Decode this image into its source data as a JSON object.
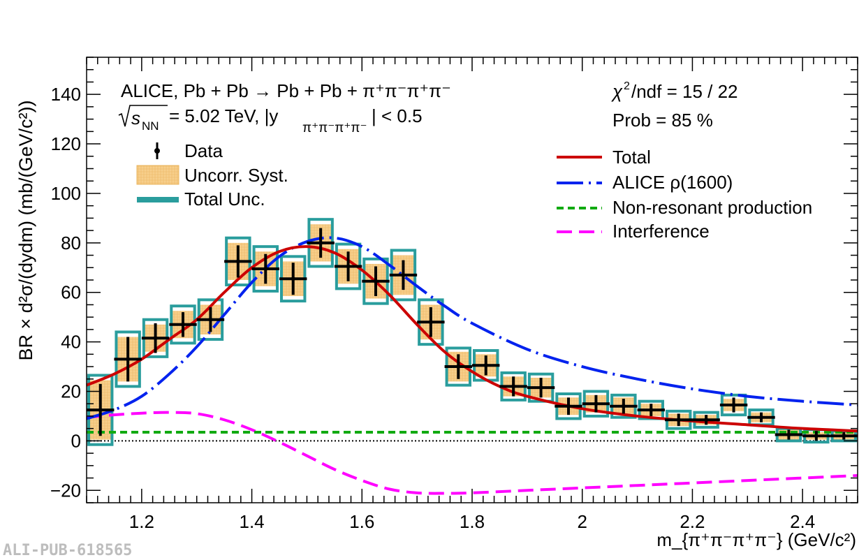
{
  "chart_data": {
    "type": "scatter",
    "watermark": "ALI-PUB-618565",
    "ylabel": "BR × d²σ/(dydm) (mb/(GeV/c²))",
    "xlabel": "m_{π⁺π⁻π⁺π⁻} (GeV/c²)",
    "xlim": [
      1.1,
      2.5
    ],
    "ylim": [
      -25,
      155
    ],
    "x_ticks": [
      1.2,
      1.4,
      1.6,
      1.8,
      2.0,
      2.2,
      2.4
    ],
    "x_tick_labels": [
      "1.2",
      "1.4",
      "1.6",
      "1.8",
      "2",
      "2.2",
      "2.4"
    ],
    "y_ticks": [
      -20,
      0,
      20,
      40,
      60,
      80,
      100,
      120,
      140
    ],
    "y_tick_labels": [
      "−20",
      "0",
      "20",
      "40",
      "60",
      "80",
      "100",
      "120",
      "140"
    ],
    "annotations": {
      "line1": "ALICE, Pb + Pb → Pb + Pb + π⁺π⁻π⁺π⁻",
      "sqrt_s_label": "s",
      "sqrt_s_sub": "NN",
      "energy_text": "= 5.02 TeV, |y",
      "y_sub": "π⁺π⁻π⁺π⁻",
      "y_cut": "| < 0.5",
      "chi2_sym": "χ",
      "chi2_sup": "2",
      "chi2": "/ndf = 15 / 22",
      "prob": "Prob = 85 %"
    },
    "legend_left": {
      "data": "Data",
      "uncorr": "Uncorr. Syst.",
      "total_unc": "Total Unc."
    },
    "legend_right": {
      "total": "Total",
      "rho": "ALICE ρ(1600)",
      "nonres": "Non-resonant production",
      "interference": "Interference"
    },
    "colors": {
      "data": "#000000",
      "syst_fill": "#f7cf8c",
      "total_unc": "#2a9d9d",
      "total": "#cc0000",
      "rho": "#0022ee",
      "nonres": "#11aa11",
      "interference": "#ff00ff"
    },
    "data_points": [
      {
        "x": 1.125,
        "y": 12.5,
        "stat": 10.5,
        "syst": 12,
        "total": 14
      },
      {
        "x": 1.175,
        "y": 33,
        "stat": 9,
        "syst": 9,
        "total": 11
      },
      {
        "x": 1.225,
        "y": 41.5,
        "stat": 6,
        "syst": 5.5,
        "total": 7.5
      },
      {
        "x": 1.275,
        "y": 47,
        "stat": 5,
        "syst": 5.5,
        "total": 7.5
      },
      {
        "x": 1.325,
        "y": 49,
        "stat": 5,
        "syst": 6,
        "total": 8
      },
      {
        "x": 1.375,
        "y": 72.5,
        "stat": 6.5,
        "syst": 7.5,
        "total": 9.5
      },
      {
        "x": 1.425,
        "y": 69.5,
        "stat": 6,
        "syst": 7,
        "total": 9
      },
      {
        "x": 1.475,
        "y": 65.5,
        "stat": 6.5,
        "syst": 7,
        "total": 9
      },
      {
        "x": 1.525,
        "y": 80,
        "stat": 6,
        "syst": 7.5,
        "total": 9.5
      },
      {
        "x": 1.575,
        "y": 70.5,
        "stat": 6,
        "syst": 7,
        "total": 9
      },
      {
        "x": 1.625,
        "y": 64.5,
        "stat": 6,
        "syst": 7,
        "total": 9
      },
      {
        "x": 1.675,
        "y": 67,
        "stat": 6,
        "syst": 8,
        "total": 10
      },
      {
        "x": 1.725,
        "y": 48,
        "stat": 6,
        "syst": 7,
        "total": 9
      },
      {
        "x": 1.775,
        "y": 30,
        "stat": 5,
        "syst": 6,
        "total": 7.5
      },
      {
        "x": 1.825,
        "y": 30.5,
        "stat": 4,
        "syst": 4.5,
        "total": 6
      },
      {
        "x": 1.875,
        "y": 22,
        "stat": 4,
        "syst": 4,
        "total": 5.5
      },
      {
        "x": 1.925,
        "y": 21.5,
        "stat": 4,
        "syst": 4,
        "total": 5.5
      },
      {
        "x": 1.975,
        "y": 14,
        "stat": 3.5,
        "syst": 3.5,
        "total": 5
      },
      {
        "x": 2.025,
        "y": 15,
        "stat": 3.5,
        "syst": 3.5,
        "total": 5
      },
      {
        "x": 2.075,
        "y": 14,
        "stat": 3,
        "syst": 3.5,
        "total": 4.5
      },
      {
        "x": 2.125,
        "y": 12.5,
        "stat": 2.5,
        "syst": 2.5,
        "total": 3.5
      },
      {
        "x": 2.175,
        "y": 8.5,
        "stat": 2.5,
        "syst": 2.5,
        "total": 3.5
      },
      {
        "x": 2.225,
        "y": 8.5,
        "stat": 2,
        "syst": 2,
        "total": 3
      },
      {
        "x": 2.275,
        "y": 14.5,
        "stat": 3,
        "syst": 2.5,
        "total": 4
      },
      {
        "x": 2.325,
        "y": 9.5,
        "stat": 2,
        "syst": 2,
        "total": 3
      },
      {
        "x": 2.375,
        "y": 2.5,
        "stat": 2,
        "syst": 2,
        "total": 2.5
      },
      {
        "x": 2.425,
        "y": 2,
        "stat": 2,
        "syst": 1.5,
        "total": 2.5
      },
      {
        "x": 2.475,
        "y": 2,
        "stat": 1.5,
        "syst": 1.5,
        "total": 2
      }
    ],
    "series": [
      {
        "name": "Total",
        "x": [
          1.1,
          1.15,
          1.2,
          1.25,
          1.3,
          1.35,
          1.4,
          1.45,
          1.5,
          1.55,
          1.6,
          1.65,
          1.7,
          1.75,
          1.8,
          1.85,
          1.9,
          2.0,
          2.1,
          2.2,
          2.3,
          2.4,
          2.5
        ],
        "values": [
          22.5,
          27,
          33,
          41,
          49,
          60,
          70,
          76.5,
          78.5,
          76,
          69,
          59,
          47,
          36,
          28,
          22,
          18,
          13,
          10,
          8,
          6.5,
          5,
          4
        ]
      },
      {
        "name": "ALICE ρ(1600)",
        "x": [
          1.1,
          1.15,
          1.2,
          1.25,
          1.3,
          1.35,
          1.4,
          1.45,
          1.5,
          1.55,
          1.6,
          1.65,
          1.7,
          1.75,
          1.8,
          1.9,
          2.0,
          2.1,
          2.2,
          2.3,
          2.4,
          2.5
        ],
        "values": [
          9,
          12.5,
          18,
          27,
          38,
          51,
          64,
          74.5,
          80.5,
          82,
          78.5,
          71,
          62.5,
          54.5,
          47.5,
          37,
          30,
          25,
          21,
          18,
          16,
          14.5
        ]
      },
      {
        "name": "Non-resonant production",
        "x": [
          1.1,
          2.5
        ],
        "values": [
          3.5,
          3.5
        ]
      },
      {
        "name": "Interference",
        "x": [
          1.1,
          1.15,
          1.2,
          1.25,
          1.3,
          1.35,
          1.4,
          1.45,
          1.5,
          1.55,
          1.6,
          1.65,
          1.7,
          1.75,
          1.8,
          1.9,
          2.0,
          2.1,
          2.2,
          2.3,
          2.4,
          2.5
        ],
        "values": [
          9.5,
          10.5,
          11.2,
          11.5,
          11,
          8.5,
          4.5,
          -0.5,
          -6,
          -11.5,
          -16,
          -19.5,
          -21,
          -21.2,
          -21,
          -20,
          -19,
          -18,
          -17,
          -16,
          -15,
          -14
        ]
      }
    ]
  }
}
